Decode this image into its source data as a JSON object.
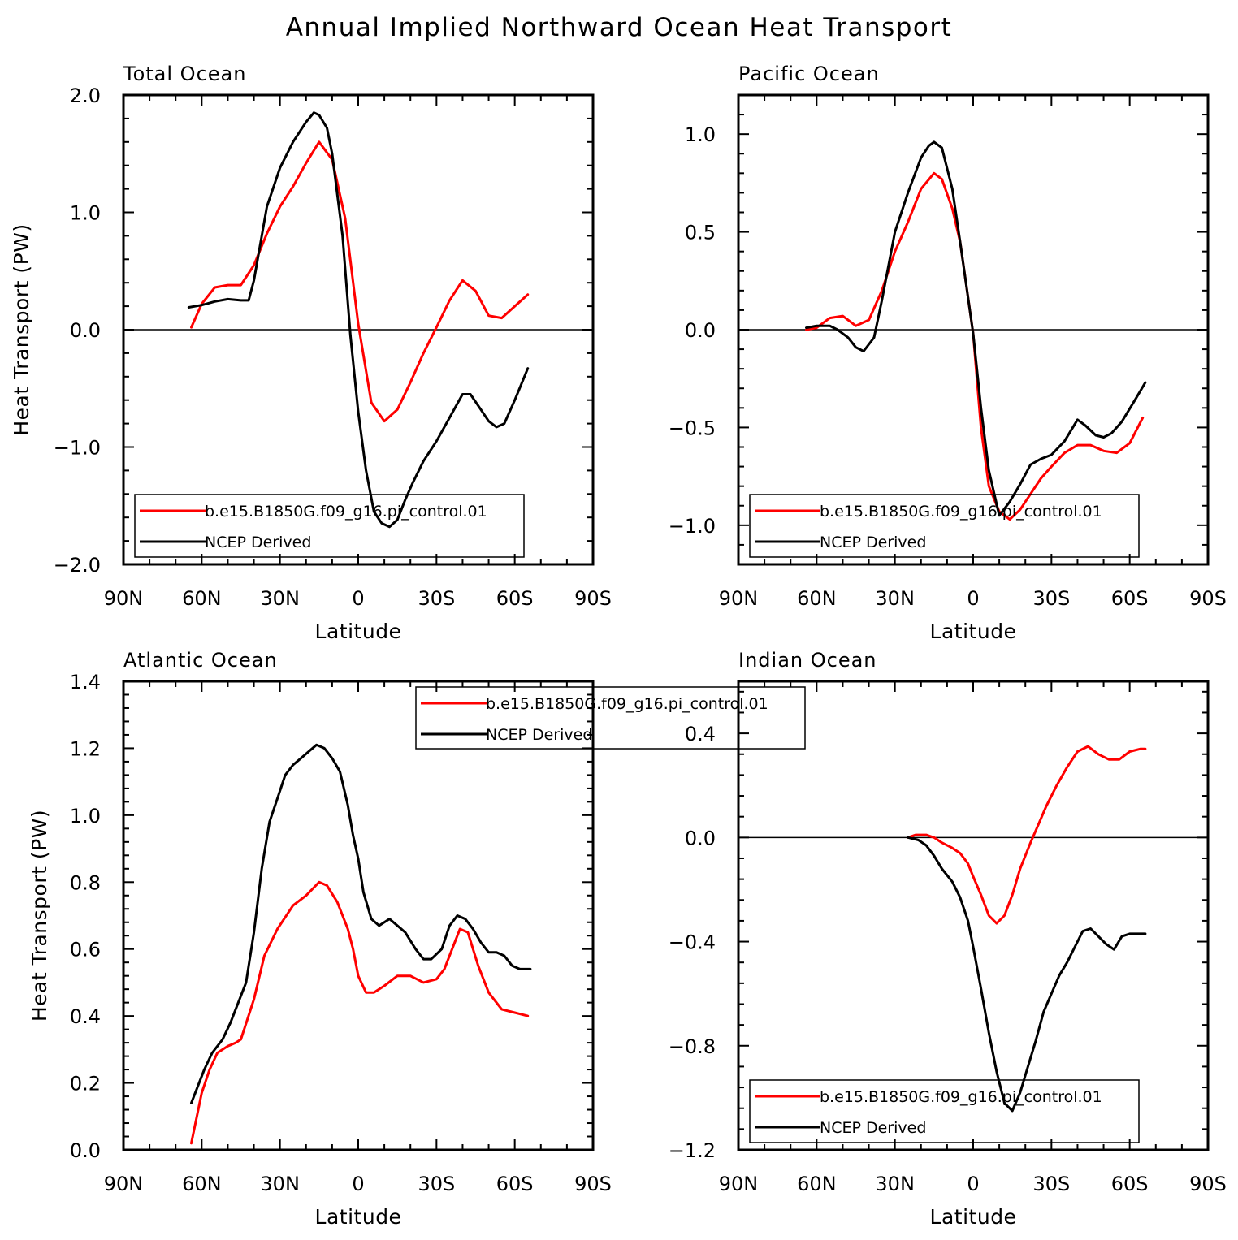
{
  "figure": {
    "title": "Annual Implied Northward Ocean Heat Transport"
  },
  "colors": {
    "model": "#ff0000",
    "ncep": "#000000",
    "axes": "#000000",
    "zero_line": "#000000",
    "background": "#ffffff"
  },
  "chart_data": [
    {
      "type": "line",
      "title": "Total Ocean",
      "xlabel": "Latitude",
      "ylabel": "Heat Transport (PW)",
      "xlim": [
        90,
        -90
      ],
      "x_ticks": [
        90,
        60,
        30,
        0,
        -30,
        -60,
        -90
      ],
      "x_tick_labels": [
        "90N",
        "60N",
        "30N",
        "0",
        "30S",
        "60S",
        "90S"
      ],
      "ylim": [
        -2.0,
        2.0
      ],
      "y_ticks": [
        -2.0,
        -1.0,
        0.0,
        1.0,
        2.0
      ],
      "y_tick_labels": [
        "−2.0",
        "−1.0",
        "0.0",
        "1.0",
        "2.0"
      ],
      "legend": {
        "position": "bottom-left"
      },
      "series": [
        {
          "name": "b.e15.B1850G.f09_g16.pi_control.01",
          "color": "#ff0000",
          "x": [
            64,
            60,
            55,
            50,
            45,
            40,
            35,
            30,
            25,
            20,
            15,
            10,
            5,
            0,
            -5,
            -10,
            -15,
            -20,
            -25,
            -30,
            -35,
            -40,
            -45,
            -50,
            -55,
            -60,
            -65
          ],
          "y": [
            0.02,
            0.22,
            0.36,
            0.38,
            0.38,
            0.55,
            0.82,
            1.05,
            1.22,
            1.42,
            1.6,
            1.45,
            0.95,
            0.05,
            -0.62,
            -0.78,
            -0.68,
            -0.45,
            -0.2,
            0.02,
            0.25,
            0.42,
            0.33,
            0.12,
            0.1,
            0.2,
            0.3
          ]
        },
        {
          "name": "NCEP Derived",
          "color": "#000000",
          "x": [
            65,
            60,
            55,
            50,
            45,
            42,
            40,
            35,
            30,
            25,
            20,
            17,
            15,
            12,
            10,
            6,
            3,
            0,
            -3,
            -6,
            -9,
            -12,
            -15,
            -18,
            -21,
            -25,
            -30,
            -35,
            -40,
            -43,
            -47,
            -50,
            -53,
            -56,
            -60,
            -65
          ],
          "y": [
            0.19,
            0.21,
            0.24,
            0.26,
            0.25,
            0.25,
            0.42,
            1.05,
            1.38,
            1.6,
            1.77,
            1.85,
            1.83,
            1.72,
            1.5,
            0.8,
            -0.05,
            -0.7,
            -1.2,
            -1.55,
            -1.65,
            -1.68,
            -1.62,
            -1.45,
            -1.3,
            -1.12,
            -0.95,
            -0.75,
            -0.55,
            -0.55,
            -0.68,
            -0.78,
            -0.83,
            -0.8,
            -0.6,
            -0.33
          ]
        }
      ]
    },
    {
      "type": "line",
      "title": "Pacific Ocean",
      "xlabel": "Latitude",
      "ylabel": "",
      "xlim": [
        90,
        -90
      ],
      "x_ticks": [
        90,
        60,
        30,
        0,
        -30,
        -60,
        -90
      ],
      "x_tick_labels": [
        "90N",
        "60N",
        "30N",
        "0",
        "30S",
        "60S",
        "90S"
      ],
      "ylim": [
        -1.2,
        1.2
      ],
      "y_ticks": [
        -1.0,
        -0.5,
        0.0,
        0.5,
        1.0
      ],
      "y_tick_labels": [
        "−1.0",
        "−0.5",
        "0.0",
        "0.5",
        "1.0"
      ],
      "legend": {
        "position": "bottom-left"
      },
      "series": [
        {
          "name": "b.e15.B1850G.f09_g16.pi_control.01",
          "color": "#ff0000",
          "x": [
            64,
            60,
            55,
            50,
            45,
            40,
            35,
            30,
            25,
            20,
            15,
            12,
            8,
            5,
            0,
            -3,
            -6,
            -10,
            -14,
            -18,
            -22,
            -26,
            -30,
            -35,
            -40,
            -45,
            -50,
            -55,
            -60,
            -65
          ],
          "y": [
            0.0,
            0.01,
            0.06,
            0.07,
            0.02,
            0.05,
            0.2,
            0.4,
            0.55,
            0.72,
            0.8,
            0.77,
            0.62,
            0.45,
            -0.02,
            -0.5,
            -0.8,
            -0.93,
            -0.97,
            -0.92,
            -0.84,
            -0.76,
            -0.7,
            -0.63,
            -0.59,
            -0.59,
            -0.62,
            -0.63,
            -0.58,
            -0.45
          ]
        },
        {
          "name": "NCEP Derived",
          "color": "#000000",
          "x": [
            64,
            60,
            55,
            52,
            48,
            45,
            42,
            38,
            35,
            30,
            25,
            20,
            17,
            15,
            12,
            8,
            5,
            0,
            -3,
            -6,
            -10,
            -14,
            -18,
            -22,
            -26,
            -30,
            -35,
            -40,
            -43,
            -47,
            -50,
            -53,
            -57,
            -62,
            -66
          ],
          "y": [
            0.01,
            0.02,
            0.02,
            0.0,
            -0.04,
            -0.09,
            -0.11,
            -0.04,
            0.15,
            0.5,
            0.7,
            0.88,
            0.94,
            0.96,
            0.93,
            0.72,
            0.45,
            -0.02,
            -0.4,
            -0.72,
            -0.95,
            -0.88,
            -0.79,
            -0.69,
            -0.66,
            -0.64,
            -0.57,
            -0.46,
            -0.49,
            -0.54,
            -0.55,
            -0.53,
            -0.47,
            -0.36,
            -0.27
          ]
        }
      ]
    },
    {
      "type": "line",
      "title": "Atlantic Ocean",
      "xlabel": "Latitude",
      "ylabel": "Heat Transport (PW)",
      "xlim": [
        90,
        -90
      ],
      "x_ticks": [
        90,
        60,
        30,
        0,
        -30,
        -60,
        -90
      ],
      "x_tick_labels": [
        "90N",
        "60N",
        "30N",
        "0",
        "30S",
        "60S",
        "90S"
      ],
      "ylim": [
        0.0,
        1.4
      ],
      "y_ticks": [
        0.0,
        0.2,
        0.4,
        0.6,
        0.8,
        1.0,
        1.2,
        1.4
      ],
      "y_tick_labels": [
        "0.0",
        "0.2",
        "0.4",
        "0.6",
        "0.8",
        "1.0",
        "1.2",
        "1.4"
      ],
      "legend": {
        "position": "top-center"
      },
      "series": [
        {
          "name": "b.e15.B1850G.f09_g16.pi_control.01",
          "color": "#ff0000",
          "x": [
            64,
            60,
            57,
            54,
            50,
            47,
            45,
            40,
            36,
            31,
            25,
            20,
            15,
            12,
            8,
            4,
            2,
            0,
            -3,
            -6,
            -10,
            -15,
            -20,
            -25,
            -30,
            -33,
            -36,
            -39,
            -42,
            -46,
            -50,
            -55,
            -60,
            -65
          ],
          "y": [
            0.02,
            0.17,
            0.24,
            0.29,
            0.31,
            0.32,
            0.33,
            0.45,
            0.58,
            0.66,
            0.73,
            0.76,
            0.8,
            0.79,
            0.74,
            0.66,
            0.6,
            0.52,
            0.47,
            0.47,
            0.49,
            0.52,
            0.52,
            0.5,
            0.51,
            0.54,
            0.6,
            0.66,
            0.65,
            0.55,
            0.47,
            0.42,
            0.41,
            0.4
          ]
        },
        {
          "name": "NCEP Derived",
          "color": "#000000",
          "x": [
            64,
            62,
            59,
            56,
            52,
            49,
            46,
            43,
            40,
            37,
            34,
            31,
            28,
            25,
            22,
            19,
            16,
            13,
            10,
            7,
            4,
            2,
            0,
            -2,
            -5,
            -8,
            -12,
            -15,
            -18,
            -22,
            -25,
            -28,
            -32,
            -35,
            -38,
            -41,
            -44,
            -47,
            -50,
            -53,
            -56,
            -59,
            -62,
            -66
          ],
          "y": [
            0.14,
            0.18,
            0.24,
            0.29,
            0.33,
            0.38,
            0.44,
            0.5,
            0.65,
            0.84,
            0.98,
            1.05,
            1.12,
            1.15,
            1.17,
            1.19,
            1.21,
            1.2,
            1.17,
            1.13,
            1.03,
            0.94,
            0.87,
            0.77,
            0.69,
            0.67,
            0.69,
            0.67,
            0.65,
            0.6,
            0.57,
            0.57,
            0.6,
            0.67,
            0.7,
            0.69,
            0.66,
            0.62,
            0.59,
            0.59,
            0.58,
            0.55,
            0.54,
            0.54
          ]
        }
      ]
    },
    {
      "type": "line",
      "title": "Indian Ocean",
      "xlabel": "Latitude",
      "ylabel": "",
      "xlim": [
        90,
        -90
      ],
      "x_ticks": [
        90,
        60,
        30,
        0,
        -30,
        -60,
        -90
      ],
      "x_tick_labels": [
        "90N",
        "60N",
        "30N",
        "0",
        "30S",
        "60S",
        "90S"
      ],
      "ylim": [
        -1.2,
        0.6
      ],
      "y_ticks": [
        -1.2,
        -0.8,
        -0.4,
        0.0,
        0.4
      ],
      "y_tick_labels": [
        "−1.2",
        "−0.8",
        "−0.4",
        "0.0",
        "0.4"
      ],
      "legend": {
        "position": "bottom-left"
      },
      "series": [
        {
          "name": "b.e15.B1850G.f09_g16.pi_control.01",
          "color": "#ff0000",
          "x": [
            25,
            22,
            18,
            15,
            12,
            8,
            5,
            2,
            0,
            -3,
            -6,
            -9,
            -12,
            -15,
            -18,
            -22,
            -25,
            -28,
            -32,
            -36,
            -40,
            -44,
            -48,
            -52,
            -56,
            -60,
            -64,
            -66
          ],
          "y": [
            0.0,
            0.01,
            0.01,
            0.0,
            -0.02,
            -0.04,
            -0.06,
            -0.1,
            -0.15,
            -0.22,
            -0.3,
            -0.33,
            -0.3,
            -0.22,
            -0.12,
            -0.02,
            0.05,
            0.12,
            0.2,
            0.27,
            0.33,
            0.35,
            0.32,
            0.3,
            0.3,
            0.33,
            0.34,
            0.34
          ]
        },
        {
          "name": "NCEP Derived",
          "color": "#000000",
          "x": [
            25,
            21,
            18,
            15,
            12,
            8,
            5,
            2,
            0,
            -3,
            -6,
            -9,
            -12,
            -15,
            -18,
            -21,
            -24,
            -27,
            -30,
            -33,
            -36,
            -39,
            -42,
            -45,
            -48,
            -51,
            -54,
            -57,
            -60,
            -63,
            -66
          ],
          "y": [
            0.0,
            -0.01,
            -0.03,
            -0.07,
            -0.12,
            -0.17,
            -0.23,
            -0.32,
            -0.42,
            -0.58,
            -0.75,
            -0.9,
            -1.02,
            -1.05,
            -0.98,
            -0.88,
            -0.78,
            -0.67,
            -0.6,
            -0.53,
            -0.48,
            -0.42,
            -0.36,
            -0.35,
            -0.38,
            -0.41,
            -0.43,
            -0.38,
            -0.37,
            -0.37,
            -0.37
          ]
        }
      ]
    }
  ]
}
